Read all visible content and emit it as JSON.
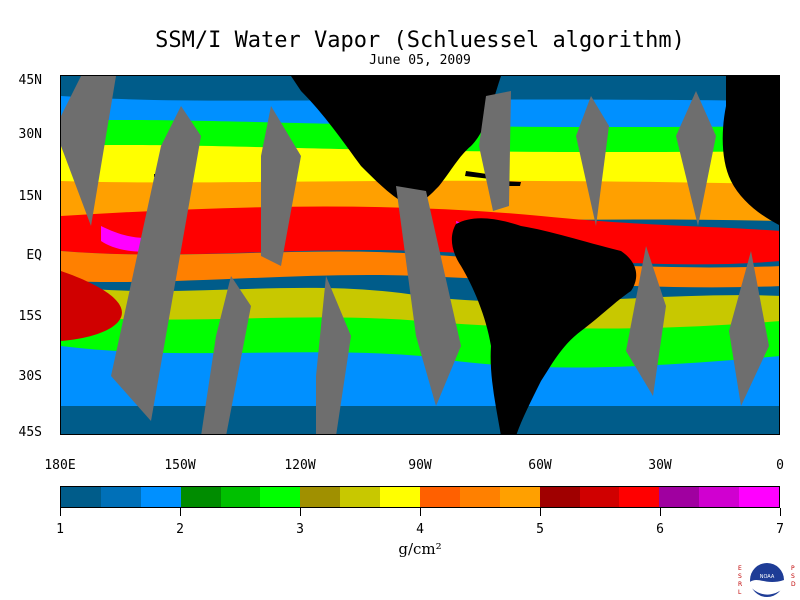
{
  "title": "SSM/I Water Vapor (Schluessel algorithm)",
  "date": "June 05, 2009",
  "units": "g/cm²",
  "y_labels": [
    "45N",
    "30N",
    "15N",
    "EQ",
    "15S",
    "30S",
    "45S"
  ],
  "x_labels": [
    "180E",
    "150W",
    "120W",
    "90W",
    "60W",
    "30W",
    "0"
  ],
  "colorbar_labels": [
    "1",
    "2",
    "3",
    "4",
    "5",
    "6",
    "7"
  ],
  "colorbar_colors": [
    "#005c8a",
    "#0070b8",
    "#0090ff",
    "#008c00",
    "#00c000",
    "#00ff00",
    "#a09000",
    "#c8c800",
    "#ffff00",
    "#ff6000",
    "#ff8000",
    "#ffa000",
    "#a00000",
    "#d00000",
    "#ff0000",
    "#a000a0",
    "#d000d0",
    "#ff00ff"
  ],
  "logo": {
    "left_text": "ESRL",
    "right_text": "PSD",
    "center_text": "NOAA"
  },
  "map": {
    "extent": {
      "lon_min": -180,
      "lon_max": 0,
      "lat_min": -45,
      "lat_max": 45
    },
    "land_color": "#000000",
    "missing_color": "#6e6e6e",
    "ocean_base_color": "#005ca0"
  }
}
